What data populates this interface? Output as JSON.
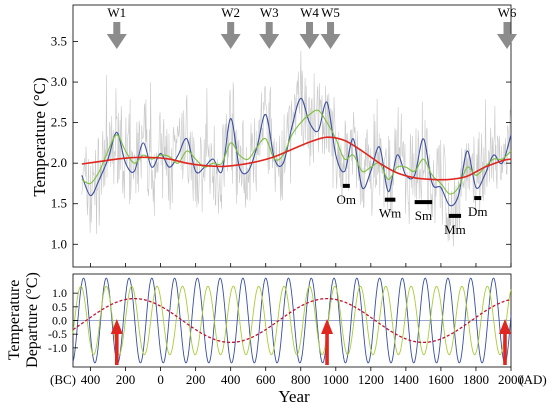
{
  "chart_data": [
    {
      "type": "line",
      "ylabel": "Temperature (°C)",
      "xlim": [
        -500,
        2000
      ],
      "ylim": [
        0.72,
        3.95
      ],
      "yticks": [
        "1.0",
        "1.5",
        "2.0",
        "2.5",
        "3.0",
        "3.5"
      ],
      "warm_events": [
        {
          "label": "W1",
          "x": -250
        },
        {
          "label": "W2",
          "x": 400
        },
        {
          "label": "W3",
          "x": 620
        },
        {
          "label": "W4",
          "x": 850
        },
        {
          "label": "W5",
          "x": 970
        },
        {
          "label": "W6",
          "x": 2000
        }
      ],
      "solar_minima": [
        {
          "label": "Om",
          "x_start": 1040,
          "x_end": 1080,
          "y": 1.72
        },
        {
          "label": "Wm",
          "x_start": 1280,
          "x_end": 1340,
          "y": 1.55
        },
        {
          "label": "Sm",
          "x_start": 1450,
          "x_end": 1550,
          "y": 1.52
        },
        {
          "label": "Mm",
          "x_start": 1645,
          "x_end": 1715,
          "y": 1.35
        },
        {
          "label": "Dm",
          "x_start": 1790,
          "x_end": 1830,
          "y": 1.57
        }
      ],
      "series": [
        {
          "color": "#c8c8c8",
          "values": "annual reconstruction (dense)"
        },
        {
          "color": "#3a4fa0",
          "x": [
            -450,
            -400,
            -350,
            -300,
            -250,
            -200,
            -150,
            -100,
            -50,
            0,
            50,
            100,
            150,
            200,
            250,
            300,
            350,
            400,
            450,
            500,
            550,
            600,
            650,
            700,
            750,
            800,
            850,
            900,
            950,
            1000,
            1050,
            1100,
            1150,
            1200,
            1250,
            1300,
            1350,
            1400,
            1450,
            1500,
            1550,
            1600,
            1650,
            1700,
            1750,
            1800,
            1850,
            1900,
            1950,
            2000
          ],
          "y": [
            1.85,
            1.6,
            1.8,
            2.05,
            2.38,
            2.0,
            1.9,
            2.25,
            1.95,
            2.12,
            1.95,
            2.1,
            2.3,
            1.9,
            1.95,
            2.05,
            1.9,
            2.55,
            1.95,
            1.9,
            2.2,
            2.6,
            2.05,
            2.0,
            2.45,
            2.8,
            2.5,
            2.4,
            2.75,
            2.1,
            1.9,
            2.3,
            1.7,
            1.9,
            2.2,
            1.65,
            2.1,
            1.85,
            1.85,
            2.3,
            1.75,
            1.7,
            1.48,
            1.6,
            2.15,
            1.7,
            1.85,
            2.1,
            2.0,
            2.35
          ]
        },
        {
          "color": "#7dbf3c",
          "x": [
            -450,
            -400,
            -350,
            -300,
            -250,
            -200,
            -150,
            -100,
            -50,
            0,
            50,
            100,
            150,
            200,
            250,
            300,
            350,
            400,
            450,
            500,
            550,
            600,
            650,
            700,
            750,
            800,
            850,
            900,
            950,
            1000,
            1050,
            1100,
            1150,
            1200,
            1250,
            1300,
            1350,
            1400,
            1450,
            1500,
            1550,
            1600,
            1650,
            1700,
            1750,
            1800,
            1850,
            1900,
            1950,
            2000
          ],
          "y": [
            1.8,
            1.75,
            1.9,
            2.15,
            2.35,
            2.15,
            2.0,
            2.1,
            2.05,
            2.1,
            2.08,
            2.0,
            2.15,
            2.05,
            1.95,
            2.0,
            2.0,
            2.25,
            2.1,
            2.05,
            2.2,
            2.3,
            2.05,
            2.1,
            2.35,
            2.5,
            2.6,
            2.65,
            2.5,
            2.3,
            2.05,
            2.1,
            1.9,
            1.95,
            2.0,
            1.8,
            1.95,
            1.95,
            1.9,
            2.05,
            1.85,
            1.75,
            1.62,
            1.7,
            1.95,
            1.85,
            1.95,
            2.05,
            2.05,
            2.15
          ]
        },
        {
          "color": "#e0261e",
          "x": [
            -450,
            -350,
            -250,
            -150,
            -50,
            50,
            150,
            250,
            350,
            450,
            550,
            650,
            750,
            850,
            950,
            1050,
            1150,
            1250,
            1350,
            1450,
            1550,
            1650,
            1750,
            1850,
            1950,
            2000
          ],
          "y": [
            1.99,
            2.02,
            2.05,
            2.07,
            2.07,
            2.05,
            2.0,
            1.97,
            1.96,
            1.98,
            2.02,
            2.08,
            2.17,
            2.26,
            2.32,
            2.28,
            2.15,
            2.0,
            1.88,
            1.82,
            1.8,
            1.8,
            1.84,
            1.95,
            2.03,
            2.05
          ]
        }
      ]
    },
    {
      "type": "line",
      "ylabel_line1": "Temperature",
      "ylabel_line2": "Departure (°C)",
      "xlabel": "Year",
      "xlim": [
        -500,
        2000
      ],
      "ylim": [
        -1.7,
        1.7
      ],
      "yticks": [
        "1.0",
        "0.5",
        "0.0",
        "-0.5",
        "-1.0"
      ],
      "xtick_labels": [
        "(BC)",
        "400",
        "200",
        "0",
        "200",
        "400",
        "600",
        "800",
        "1000",
        "1200",
        "1400",
        "1600",
        "1800",
        "2000",
        "(AD)"
      ],
      "xtick_values": [
        -400,
        -200,
        0,
        200,
        400,
        600,
        800,
        1000,
        1200,
        1400,
        1600,
        1800,
        2000
      ],
      "red_arrows_x": [
        -250,
        950,
        2000
      ],
      "series": [
        {
          "color": "#3a4fa0",
          "amplitude": 1.55,
          "period_years": 130,
          "peak_year": -50
        },
        {
          "color": "#a8cc3a",
          "amplitude": 1.25,
          "period_years": 145,
          "peak_year": -20
        },
        {
          "color": "#c41230",
          "amplitude": 0.8,
          "period_years": 1100,
          "peak_year": 950,
          "style": "dashed"
        }
      ]
    }
  ],
  "text": {
    "warm_labels": [
      "W1",
      "W2",
      "W3",
      "W4",
      "W5",
      "W6"
    ],
    "minima_labels": [
      "Om",
      "Wm",
      "Sm",
      "Mm",
      "Dm"
    ]
  }
}
